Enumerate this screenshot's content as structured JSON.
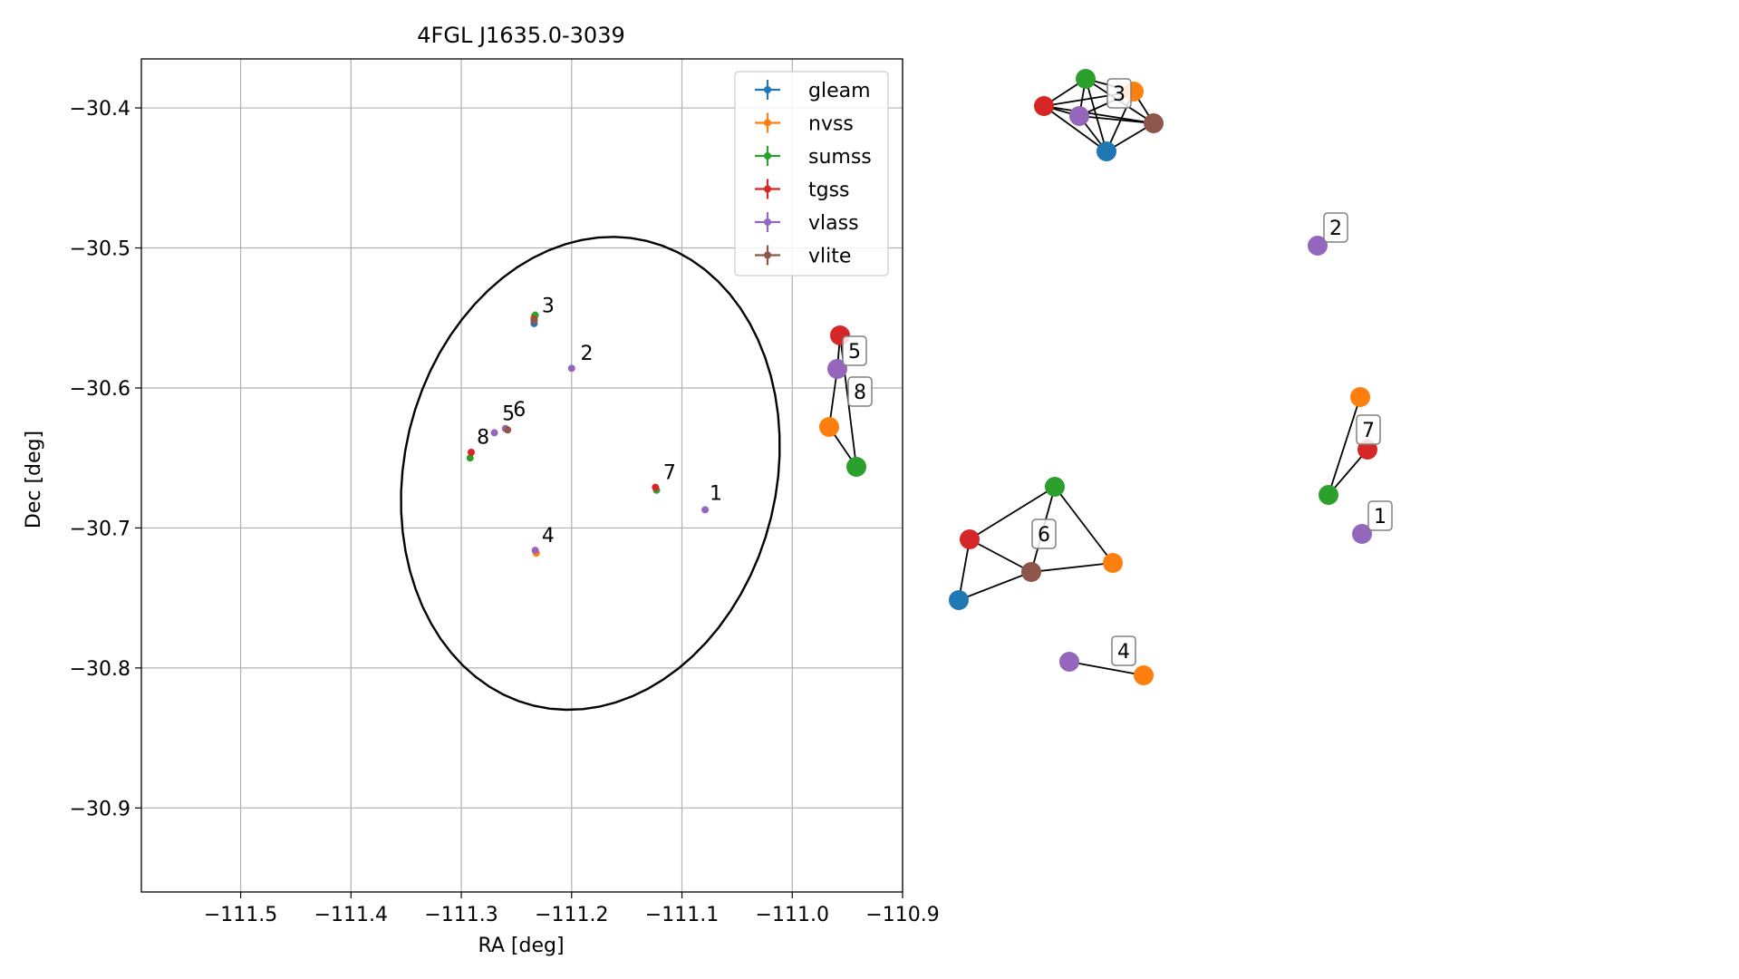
{
  "colors": {
    "gleam": "#1f77b4",
    "nvss": "#ff7f0e",
    "sumss": "#2ca02c",
    "tgss": "#d62728",
    "vlass": "#9467bd",
    "vlite": "#8c564b"
  },
  "chart_data": [
    {
      "type": "scatter",
      "title": "4FGL J1635.0-3039",
      "xlabel": "RA [deg]",
      "ylabel": "Dec [deg]",
      "xlim": [
        -111.59,
        -110.9
      ],
      "ylim": [
        -30.96,
        -30.365
      ],
      "xticks": [
        -111.5,
        -111.4,
        -111.3,
        -111.2,
        -111.1,
        -111.0,
        -110.9
      ],
      "xtick_labels": [
        "−111.5",
        "−111.4",
        "−111.3",
        "−111.2",
        "−111.1",
        "−111.0",
        "−110.9"
      ],
      "yticks": [
        -30.4,
        -30.5,
        -30.6,
        -30.7,
        -30.8,
        -30.9
      ],
      "ytick_labels": [
        "−30.4",
        "−30.5",
        "−30.6",
        "−30.7",
        "−30.8",
        "−30.9"
      ],
      "grid": true,
      "legend_position": "top-right",
      "series": [
        {
          "name": "gleam",
          "points": [
            [
              -111.234,
              -30.554
            ]
          ]
        },
        {
          "name": "nvss",
          "points": [
            [
              -111.232,
              -30.718
            ],
            [
              -111.234,
              -30.549
            ]
          ]
        },
        {
          "name": "sumss",
          "points": [
            [
              -111.292,
              -30.65
            ],
            [
              -111.123,
              -30.673
            ],
            [
              -111.233,
              -30.548
            ]
          ]
        },
        {
          "name": "tgss",
          "points": [
            [
              -111.291,
              -30.646
            ],
            [
              -111.124,
              -30.671
            ],
            [
              -111.234,
              -30.551
            ]
          ]
        },
        {
          "name": "vlass",
          "points": [
            [
              -111.079,
              -30.687
            ],
            [
              -111.2,
              -30.586
            ],
            [
              -111.233,
              -30.716
            ],
            [
              -111.27,
              -30.632
            ],
            [
              -111.26,
              -30.629
            ]
          ]
        },
        {
          "name": "vlite",
          "points": [
            [
              -111.258,
              -30.63
            ],
            [
              -111.234,
              -30.552
            ]
          ]
        }
      ],
      "annotations": [
        {
          "text": "1",
          "x": -111.075,
          "y": -30.68
        },
        {
          "text": "2",
          "x": -111.192,
          "y": -30.58
        },
        {
          "text": "3",
          "x": -111.227,
          "y": -30.546
        },
        {
          "text": "4",
          "x": -111.227,
          "y": -30.71
        },
        {
          "text": "5",
          "x": -111.263,
          "y": -30.623
        },
        {
          "text": "6",
          "x": -111.253,
          "y": -30.62
        },
        {
          "text": "7",
          "x": -111.117,
          "y": -30.665
        },
        {
          "text": "8",
          "x": -111.286,
          "y": -30.64
        }
      ],
      "ellipse": {
        "center": [
          -111.183,
          -30.661
        ],
        "semi_axes": [
          0.18,
          0.16
        ],
        "rotation_deg": 41
      }
    },
    {
      "type": "network",
      "node_labels": [
        "1",
        "2",
        "3",
        "4",
        "5",
        "6",
        "7",
        "8"
      ]
    }
  ]
}
